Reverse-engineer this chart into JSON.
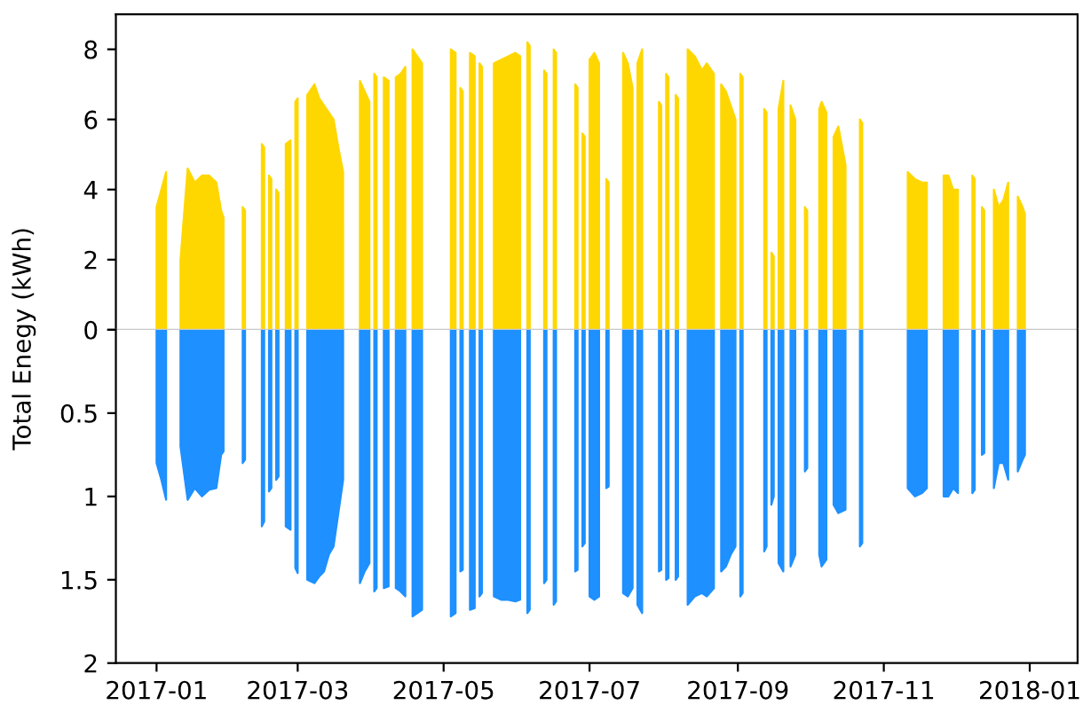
{
  "chart_data": [
    {
      "type": "area",
      "ylabel": "Total Enegy (kWh)",
      "tick_labels": "y",
      "ylim": [
        0,
        9
      ],
      "yticks": [
        0,
        2,
        4,
        6,
        8
      ],
      "xlim": [
        "2016-12-15",
        "2018-01-21"
      ],
      "x": [
        "2017-01-01",
        "2017-01-03",
        "2017-01-05",
        "2017-01-07",
        "2017-01-11",
        "2017-01-14",
        "2017-01-17",
        "2017-01-20",
        "2017-01-23",
        "2017-01-26",
        "2017-01-28",
        "2017-01-29",
        "2017-02-01",
        "2017-02-06",
        "2017-02-07",
        "2017-02-10",
        "2017-02-14",
        "2017-02-15",
        "2017-02-16",
        "2017-02-17",
        "2017-02-18",
        "2017-02-19",
        "2017-02-20",
        "2017-02-21",
        "2017-02-22",
        "2017-02-24",
        "2017-02-26",
        "2017-02-27",
        "2017-02-28",
        "2017-03-01",
        "2017-03-03",
        "2017-03-05",
        "2017-03-08",
        "2017-03-10",
        "2017-03-12",
        "2017-03-14",
        "2017-03-16",
        "2017-03-18",
        "2017-03-20",
        "2017-03-22",
        "2017-03-27",
        "2017-03-29",
        "2017-03-31",
        "2017-04-01",
        "2017-04-02",
        "2017-04-03",
        "2017-04-04",
        "2017-04-06",
        "2017-04-08",
        "2017-04-09",
        "2017-04-11",
        "2017-04-13",
        "2017-04-15",
        "2017-04-16",
        "2017-04-18",
        "2017-04-20",
        "2017-04-22",
        "2017-04-24",
        "2017-05-04",
        "2017-05-06",
        "2017-05-07",
        "2017-05-08",
        "2017-05-09",
        "2017-05-10",
        "2017-05-12",
        "2017-05-14",
        "2017-05-15",
        "2017-05-16",
        "2017-05-17",
        "2017-05-19",
        "2017-05-22",
        "2017-05-25",
        "2017-05-28",
        "2017-05-31",
        "2017-06-02",
        "2017-06-03",
        "2017-06-05",
        "2017-06-06",
        "2017-06-08",
        "2017-06-12",
        "2017-06-13",
        "2017-06-14",
        "2017-06-16",
        "2017-06-17",
        "2017-06-19",
        "2017-06-25",
        "2017-06-26",
        "2017-06-27",
        "2017-06-28",
        "2017-06-29",
        "2017-06-30",
        "2017-07-01",
        "2017-07-03",
        "2017-07-05",
        "2017-07-07",
        "2017-07-08",
        "2017-07-09",
        "2017-07-11",
        "2017-07-15",
        "2017-07-17",
        "2017-07-19",
        "2017-07-20",
        "2017-07-21",
        "2017-07-23",
        "2017-07-25",
        "2017-07-30",
        "2017-07-31",
        "2017-08-01",
        "2017-08-02",
        "2017-08-03",
        "2017-08-04",
        "2017-08-06",
        "2017-08-07",
        "2017-08-09",
        "2017-08-11",
        "2017-08-14",
        "2017-08-17",
        "2017-08-19",
        "2017-08-22",
        "2017-08-23",
        "2017-08-25",
        "2017-08-27",
        "2017-08-29",
        "2017-08-31",
        "2017-09-01",
        "2017-09-02",
        "2017-09-03",
        "2017-09-05",
        "2017-09-12",
        "2017-09-13",
        "2017-09-14",
        "2017-09-15",
        "2017-09-16",
        "2017-09-17",
        "2017-09-18",
        "2017-09-20",
        "2017-09-21",
        "2017-09-23",
        "2017-09-25",
        "2017-09-27",
        "2017-09-29",
        "2017-09-30",
        "2017-10-02",
        "2017-10-05",
        "2017-10-06",
        "2017-10-08",
        "2017-10-09",
        "2017-10-11",
        "2017-10-13",
        "2017-10-16",
        "2017-10-17",
        "2017-10-22",
        "2017-10-23",
        "2017-10-25",
        "2017-11-11",
        "2017-11-14",
        "2017-11-17",
        "2017-11-19",
        "2017-11-21",
        "2017-11-26",
        "2017-11-28",
        "2017-11-30",
        "2017-12-02",
        "2017-12-04",
        "2017-12-08",
        "2017-12-09",
        "2017-12-10",
        "2017-12-12",
        "2017-12-13",
        "2017-12-15",
        "2017-12-17",
        "2017-12-19",
        "2017-12-21",
        "2017-12-23",
        "2017-12-25",
        "2017-12-27",
        "2017-12-29",
        "2017-12-30"
      ],
      "series": [
        {
          "color": "#ffd700",
          "values": [
            3.5,
            4.0,
            4.5,
            null,
            2.0,
            4.6,
            4.2,
            4.4,
            4.4,
            4.2,
            3.4,
            3.2,
            null,
            3.5,
            3.4,
            null,
            5.3,
            5.2,
            null,
            4.4,
            4.3,
            null,
            4.0,
            3.9,
            null,
            5.3,
            5.4,
            null,
            6.5,
            6.6,
            null,
            6.7,
            7.0,
            6.6,
            6.4,
            6.2,
            6.0,
            5.2,
            4.5,
            null,
            7.1,
            6.8,
            6.5,
            null,
            7.3,
            7.2,
            null,
            7.2,
            7.1,
            null,
            7.2,
            7.3,
            7.5,
            null,
            8.0,
            7.8,
            7.6,
            null,
            8.0,
            7.9,
            null,
            6.9,
            6.8,
            null,
            7.9,
            7.8,
            null,
            7.6,
            7.5,
            null,
            7.6,
            7.7,
            7.8,
            7.9,
            7.8,
            null,
            8.2,
            8.1,
            null,
            7.4,
            7.3,
            null,
            8.0,
            7.9,
            null,
            7.0,
            6.9,
            null,
            5.6,
            5.5,
            null,
            7.7,
            7.9,
            7.6,
            null,
            4.3,
            4.2,
            null,
            7.9,
            7.6,
            6.9,
            null,
            7.6,
            8.0,
            null,
            6.5,
            6.4,
            null,
            7.3,
            7.2,
            null,
            6.7,
            6.6,
            null,
            8.0,
            7.8,
            7.4,
            7.6,
            7.3,
            null,
            7.0,
            6.8,
            6.4,
            6.0,
            null,
            7.3,
            7.2,
            null,
            6.3,
            6.2,
            null,
            2.2,
            2.1,
            null,
            6.3,
            7.1,
            null,
            6.4,
            6.0,
            null,
            3.5,
            3.4,
            null,
            6.3,
            6.5,
            6.2,
            null,
            5.5,
            5.8,
            4.7,
            null,
            6.0,
            5.9,
            null,
            4.5,
            4.3,
            4.2,
            4.2,
            null,
            4.4,
            4.4,
            4.0,
            4.0,
            null,
            4.4,
            4.3,
            null,
            3.5,
            3.4,
            null,
            4.0,
            3.5,
            3.7,
            4.2,
            null,
            3.8,
            3.5,
            3.3
          ]
        }
      ]
    },
    {
      "type": "area",
      "ylim": [
        2,
        0
      ],
      "yticks": [
        {
          "value": 0,
          "label": null
        },
        0.5,
        1,
        1.5,
        2
      ],
      "xlim": [
        "2016-12-15",
        "2018-01-21"
      ],
      "xticks": [
        {
          "value": "2017-01-01",
          "label": "2017-01"
        },
        {
          "value": "2017-03-01",
          "label": "2017-03"
        },
        {
          "value": "2017-05-01",
          "label": "2017-05"
        },
        {
          "value": "2017-07-01",
          "label": "2017-07"
        },
        {
          "value": "2017-09-01",
          "label": "2017-09"
        },
        {
          "value": "2017-11-01",
          "label": "2017-11"
        },
        {
          "value": "2018-01-01",
          "label": "2018-01"
        }
      ],
      "x": [
        "2017-01-01",
        "2017-01-03",
        "2017-01-05",
        "2017-01-07",
        "2017-01-11",
        "2017-01-14",
        "2017-01-17",
        "2017-01-20",
        "2017-01-23",
        "2017-01-26",
        "2017-01-28",
        "2017-01-29",
        "2017-02-01",
        "2017-02-06",
        "2017-02-07",
        "2017-02-10",
        "2017-02-14",
        "2017-02-15",
        "2017-02-16",
        "2017-02-17",
        "2017-02-18",
        "2017-02-19",
        "2017-02-20",
        "2017-02-21",
        "2017-02-22",
        "2017-02-24",
        "2017-02-26",
        "2017-02-27",
        "2017-02-28",
        "2017-03-01",
        "2017-03-03",
        "2017-03-05",
        "2017-03-08",
        "2017-03-10",
        "2017-03-12",
        "2017-03-14",
        "2017-03-16",
        "2017-03-18",
        "2017-03-20",
        "2017-03-22",
        "2017-03-27",
        "2017-03-29",
        "2017-03-31",
        "2017-04-01",
        "2017-04-02",
        "2017-04-03",
        "2017-04-04",
        "2017-04-06",
        "2017-04-08",
        "2017-04-09",
        "2017-04-11",
        "2017-04-13",
        "2017-04-15",
        "2017-04-16",
        "2017-04-18",
        "2017-04-20",
        "2017-04-22",
        "2017-04-24",
        "2017-05-04",
        "2017-05-06",
        "2017-05-07",
        "2017-05-08",
        "2017-05-09",
        "2017-05-10",
        "2017-05-12",
        "2017-05-14",
        "2017-05-15",
        "2017-05-16",
        "2017-05-17",
        "2017-05-19",
        "2017-05-22",
        "2017-05-25",
        "2017-05-28",
        "2017-05-31",
        "2017-06-02",
        "2017-06-03",
        "2017-06-05",
        "2017-06-06",
        "2017-06-08",
        "2017-06-12",
        "2017-06-13",
        "2017-06-14",
        "2017-06-16",
        "2017-06-17",
        "2017-06-19",
        "2017-06-25",
        "2017-06-26",
        "2017-06-27",
        "2017-06-28",
        "2017-06-29",
        "2017-06-30",
        "2017-07-01",
        "2017-07-03",
        "2017-07-05",
        "2017-07-07",
        "2017-07-08",
        "2017-07-09",
        "2017-07-11",
        "2017-07-15",
        "2017-07-17",
        "2017-07-19",
        "2017-07-20",
        "2017-07-21",
        "2017-07-23",
        "2017-07-25",
        "2017-07-30",
        "2017-07-31",
        "2017-08-01",
        "2017-08-02",
        "2017-08-03",
        "2017-08-04",
        "2017-08-06",
        "2017-08-07",
        "2017-08-09",
        "2017-08-11",
        "2017-08-14",
        "2017-08-17",
        "2017-08-19",
        "2017-08-22",
        "2017-08-23",
        "2017-08-25",
        "2017-08-27",
        "2017-08-29",
        "2017-08-31",
        "2017-09-01",
        "2017-09-02",
        "2017-09-03",
        "2017-09-05",
        "2017-09-12",
        "2017-09-13",
        "2017-09-14",
        "2017-09-15",
        "2017-09-16",
        "2017-09-17",
        "2017-09-18",
        "2017-09-20",
        "2017-09-21",
        "2017-09-23",
        "2017-09-25",
        "2017-09-27",
        "2017-09-29",
        "2017-09-30",
        "2017-10-02",
        "2017-10-05",
        "2017-10-06",
        "2017-10-08",
        "2017-10-09",
        "2017-10-11",
        "2017-10-13",
        "2017-10-16",
        "2017-10-17",
        "2017-10-22",
        "2017-10-23",
        "2017-10-25",
        "2017-11-11",
        "2017-11-14",
        "2017-11-17",
        "2017-11-19",
        "2017-11-21",
        "2017-11-26",
        "2017-11-28",
        "2017-11-30",
        "2017-12-02",
        "2017-12-04",
        "2017-12-08",
        "2017-12-09",
        "2017-12-10",
        "2017-12-12",
        "2017-12-13",
        "2017-12-15",
        "2017-12-17",
        "2017-12-19",
        "2017-12-21",
        "2017-12-23",
        "2017-12-25",
        "2017-12-27",
        "2017-12-29",
        "2017-12-30"
      ],
      "series": [
        {
          "color": "#1e90ff",
          "values": [
            0.8,
            0.9,
            1.02,
            null,
            0.7,
            1.02,
            0.95,
            1.0,
            0.96,
            0.95,
            0.75,
            0.73,
            null,
            0.8,
            0.78,
            null,
            1.18,
            1.15,
            null,
            0.97,
            0.95,
            null,
            0.9,
            0.88,
            null,
            1.18,
            1.2,
            null,
            1.43,
            1.46,
            null,
            1.5,
            1.52,
            1.48,
            1.45,
            1.35,
            1.3,
            1.1,
            0.9,
            null,
            1.52,
            1.45,
            1.4,
            null,
            1.57,
            1.55,
            null,
            1.55,
            1.54,
            null,
            1.55,
            1.57,
            1.6,
            null,
            1.72,
            1.7,
            1.68,
            null,
            1.72,
            1.7,
            null,
            1.45,
            1.44,
            null,
            1.68,
            1.67,
            null,
            1.6,
            1.58,
            null,
            1.6,
            1.62,
            1.62,
            1.63,
            1.62,
            null,
            1.7,
            1.68,
            null,
            1.52,
            1.5,
            null,
            1.65,
            1.63,
            null,
            1.45,
            1.44,
            null,
            1.3,
            1.28,
            null,
            1.6,
            1.62,
            1.6,
            null,
            0.95,
            0.94,
            null,
            1.58,
            1.6,
            1.55,
            null,
            1.65,
            1.7,
            null,
            1.45,
            1.44,
            null,
            1.5,
            1.49,
            null,
            1.5,
            1.48,
            null,
            1.65,
            1.6,
            1.58,
            1.6,
            1.55,
            null,
            1.45,
            1.42,
            1.35,
            1.3,
            null,
            1.6,
            1.58,
            null,
            1.33,
            1.3,
            null,
            1.05,
            1.0,
            null,
            1.4,
            1.45,
            null,
            1.42,
            1.35,
            null,
            0.85,
            0.83,
            null,
            1.35,
            1.42,
            1.38,
            null,
            1.05,
            1.1,
            1.08,
            null,
            1.3,
            1.28,
            null,
            0.95,
            1.0,
            0.98,
            0.95,
            null,
            1.0,
            1.0,
            0.95,
            0.98,
            null,
            0.98,
            0.96,
            null,
            0.75,
            0.74,
            null,
            0.95,
            0.8,
            0.8,
            0.9,
            null,
            0.85,
            0.78,
            0.75
          ]
        }
      ]
    }
  ]
}
